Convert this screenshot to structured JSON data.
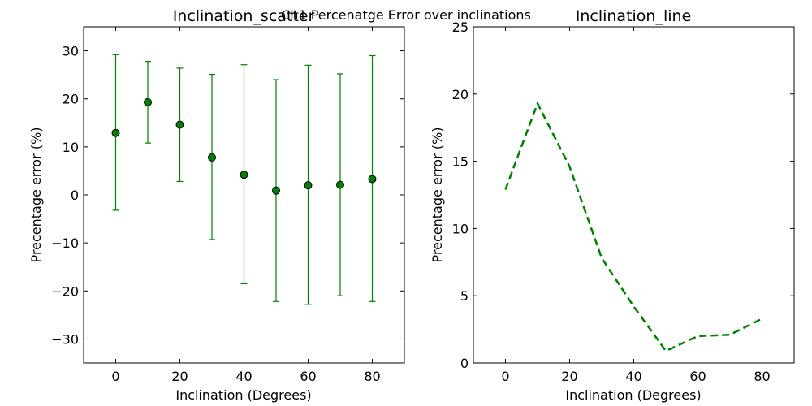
{
  "suptitle": "Ch1 Percenatge Error over inclinations",
  "chart_data": [
    {
      "type": "scatter",
      "title": "Inclination_scatter",
      "xlabel": "Inclination (Degrees)",
      "ylabel": "Precentage error (%)",
      "xlim": [
        -10,
        90
      ],
      "ylim": [
        -35,
        35
      ],
      "xticks": [
        "0",
        "20",
        "40",
        "60",
        "80"
      ],
      "yticks": [
        "30",
        "20",
        "10",
        "0",
        "−10",
        "−20",
        "−30"
      ],
      "x": [
        0,
        10,
        20,
        30,
        40,
        50,
        60,
        70,
        80
      ],
      "y": [
        12.9,
        19.3,
        14.6,
        7.8,
        4.2,
        0.9,
        2.0,
        2.1,
        3.3
      ],
      "err_low": [
        -3.2,
        10.8,
        2.8,
        -9.3,
        -18.5,
        -22.2,
        -22.8,
        -21.0,
        -22.2
      ],
      "err_high": [
        29.2,
        27.8,
        26.4,
        25.1,
        27.1,
        24.0,
        27.0,
        25.2,
        29.0
      ],
      "color": "#008000"
    },
    {
      "type": "line",
      "title": "Inclination_line",
      "xlabel": "Inclination (Degrees)",
      "ylabel": "Precentage error (%)",
      "xlim": [
        -10,
        90
      ],
      "ylim": [
        0,
        25
      ],
      "xticks": [
        "0",
        "20",
        "40",
        "60",
        "80"
      ],
      "yticks": [
        "25",
        "20",
        "15",
        "10",
        "5",
        "0"
      ],
      "x": [
        0,
        10,
        20,
        30,
        40,
        50,
        60,
        70,
        80
      ],
      "y": [
        12.9,
        19.3,
        14.6,
        7.8,
        4.2,
        0.9,
        2.0,
        2.1,
        3.3
      ],
      "line_style": "dashed",
      "color": "#008000"
    }
  ]
}
